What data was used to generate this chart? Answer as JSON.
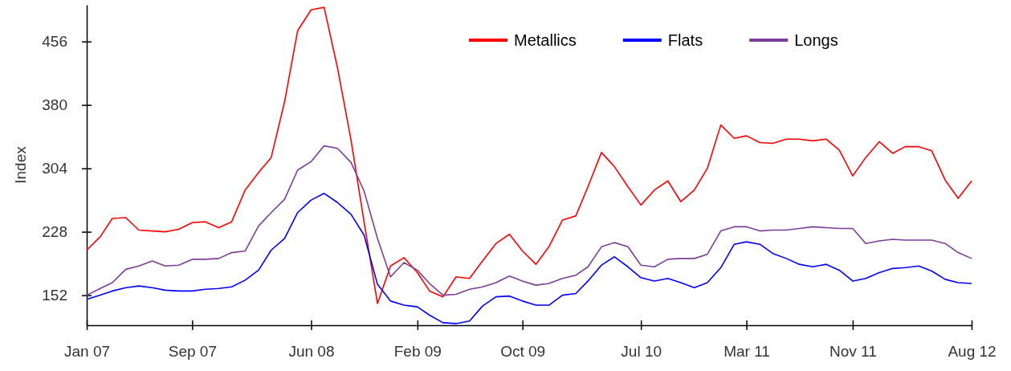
{
  "chart_data": {
    "type": "line",
    "ylabel": "Index",
    "x": [
      "2007-01",
      "2007-02",
      "2007-03",
      "2007-04",
      "2007-05",
      "2007-06",
      "2007-07",
      "2007-08",
      "2007-09",
      "2007-10",
      "2007-11",
      "2007-12",
      "2008-01",
      "2008-02",
      "2008-03",
      "2008-04",
      "2008-05",
      "2008-06",
      "2008-07",
      "2008-08",
      "2008-09",
      "2008-10",
      "2008-11",
      "2008-12",
      "2009-01",
      "2009-02",
      "2009-03",
      "2009-04",
      "2009-05",
      "2009-06",
      "2009-07",
      "2009-08",
      "2009-09",
      "2009-10",
      "2009-11",
      "2009-12",
      "2010-01",
      "2010-02",
      "2010-03",
      "2010-04",
      "2010-05",
      "2010-06",
      "2010-07",
      "2010-08",
      "2010-09",
      "2010-10",
      "2010-11",
      "2010-12",
      "2011-01",
      "2011-02",
      "2011-03",
      "2011-04",
      "2011-05",
      "2011-06",
      "2011-07",
      "2011-08",
      "2011-09",
      "2011-10",
      "2011-11",
      "2011-12",
      "2012-01",
      "2012-02",
      "2012-03",
      "2012-04",
      "2012-05",
      "2012-06",
      "2012-07",
      "2012-08"
    ],
    "xlim": [
      "2007-01",
      "2012-08"
    ],
    "xticks": [
      {
        "value": "2007-01",
        "label": "Jan 07"
      },
      {
        "value": "2007-09",
        "label": "Sep 07"
      },
      {
        "value": "2008-06",
        "label": "Jun 08"
      },
      {
        "value": "2009-02",
        "label": "Feb 09"
      },
      {
        "value": "2009-10",
        "label": "Oct 09"
      },
      {
        "value": "2010-07",
        "label": "Jul 10"
      },
      {
        "value": "2011-03",
        "label": "Mar 11"
      },
      {
        "value": "2011-11",
        "label": "Nov 11"
      },
      {
        "value": "2012-08",
        "label": "Aug 12"
      }
    ],
    "ylim": [
      116,
      500
    ],
    "yticks": [
      152,
      228,
      304,
      380,
      456
    ],
    "legend": "top right",
    "grid": false,
    "series": [
      {
        "name": "Metallics",
        "color": "#ff0000",
        "values": [
          206,
          222,
          244,
          245,
          230,
          229,
          228,
          231,
          239,
          240,
          233,
          240,
          278,
          299,
          317,
          384,
          469,
          494,
          497,
          424,
          338,
          240,
          142,
          187,
          197,
          179,
          157,
          150,
          174,
          172,
          193,
          214,
          225,
          205,
          189,
          210,
          242,
          247,
          282,
          323,
          306,
          282,
          260,
          278,
          289,
          264,
          278,
          304,
          356,
          340,
          343,
          335,
          334,
          339,
          339,
          337,
          339,
          326,
          295,
          317,
          336,
          322,
          330,
          330,
          325,
          290,
          268,
          289
        ]
      },
      {
        "name": "Flats",
        "color": "#0000ff",
        "values": [
          147,
          152,
          157,
          161,
          163,
          161,
          158,
          157,
          157,
          159,
          160,
          162,
          170,
          182,
          206,
          220,
          251,
          266,
          274,
          263,
          249,
          224,
          165,
          145,
          140,
          138,
          128,
          119,
          118,
          121,
          139,
          150,
          151,
          145,
          140,
          140,
          152,
          154,
          169,
          188,
          198,
          186,
          173,
          169,
          172,
          167,
          161,
          167,
          185,
          213,
          216,
          213,
          202,
          196,
          189,
          186,
          189,
          182,
          169,
          172,
          179,
          184,
          185,
          187,
          181,
          171,
          167,
          166
        ]
      },
      {
        "name": "Longs",
        "color": "#7b3f99",
        "values": [
          152,
          160,
          167,
          183,
          187,
          193,
          187,
          188,
          195,
          195,
          196,
          203,
          205,
          235,
          251,
          267,
          302,
          312,
          331,
          328,
          311,
          277,
          220,
          174,
          191,
          182,
          166,
          152,
          153,
          159,
          162,
          167,
          175,
          169,
          164,
          166,
          172,
          176,
          186,
          210,
          215,
          210,
          188,
          186,
          195,
          196,
          196,
          201,
          229,
          234,
          234,
          229,
          230,
          230,
          232,
          234,
          233,
          232,
          232,
          214,
          217,
          219,
          218,
          218,
          218,
          214,
          203,
          196
        ]
      }
    ]
  }
}
